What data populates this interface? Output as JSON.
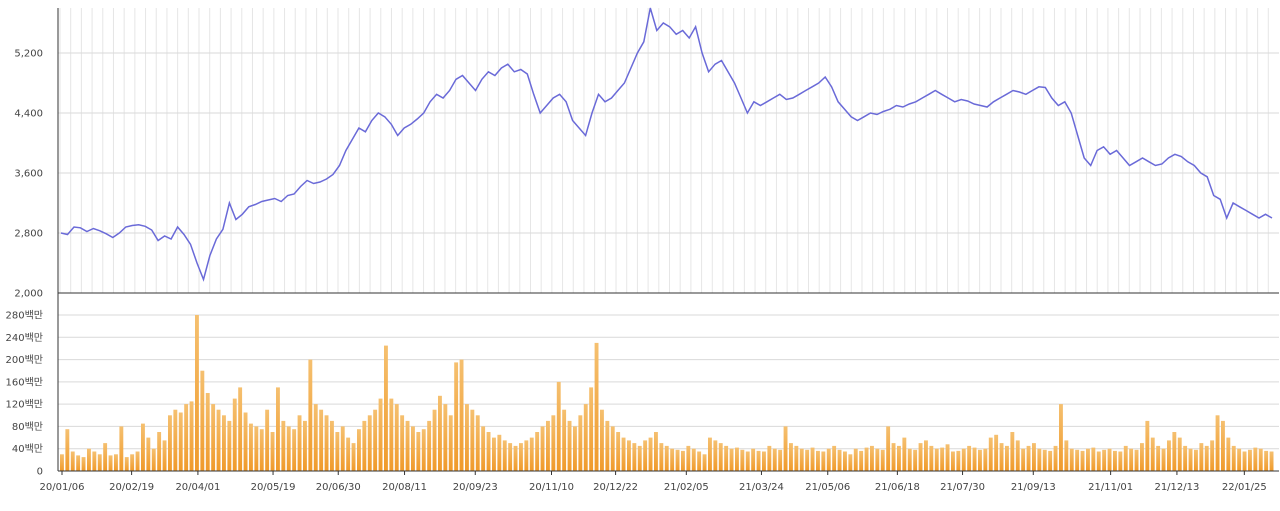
{
  "chart_data": [
    {
      "type": "line",
      "title": "",
      "xlabel": "",
      "ylabel": "",
      "ylim": [
        2000,
        5800
      ],
      "yticks": [
        "2,000",
        "2,800",
        "3,600",
        "4,400",
        "5,200"
      ],
      "ytick_values": [
        2000,
        2800,
        3600,
        4400,
        5200
      ],
      "grid": true,
      "color": "#6a6ad8",
      "x_start": "20/01/06",
      "x_end": "22/02/11",
      "series": [
        {
          "values": [
            2800,
            2780,
            2880,
            2870,
            2820,
            2860,
            2830,
            2790,
            2740,
            2800,
            2880,
            2900,
            2910,
            2890,
            2840,
            2700,
            2760,
            2720,
            2880,
            2780,
            2650,
            2400,
            2180,
            2500,
            2720,
            2850,
            3200,
            2980,
            3050,
            3150,
            3180,
            3220,
            3240,
            3260,
            3220,
            3300,
            3320,
            3420,
            3500,
            3460,
            3480,
            3520,
            3580,
            3700,
            3900,
            4050,
            4200,
            4150,
            4300,
            4400,
            4350,
            4250,
            4100,
            4200,
            4250,
            4320,
            4400,
            4550,
            4650,
            4600,
            4700,
            4850,
            4900,
            4800,
            4700,
            4850,
            4950,
            4900,
            5000,
            5050,
            4950,
            4980,
            4920,
            4650,
            4400,
            4500,
            4600,
            4650,
            4550,
            4300,
            4200,
            4100,
            4400,
            4650,
            4550,
            4600,
            4700,
            4800,
            5000,
            5200,
            5350,
            5800,
            5500,
            5600,
            5550,
            5450,
            5500,
            5400,
            5550,
            5200,
            4950,
            5050,
            5100,
            4950,
            4800,
            4600,
            4400,
            4550,
            4500,
            4550,
            4600,
            4650,
            4580,
            4600,
            4650,
            4700,
            4750,
            4800,
            4880,
            4750,
            4550,
            4450,
            4350,
            4300,
            4350,
            4400,
            4380,
            4420,
            4450,
            4500,
            4480,
            4520,
            4550,
            4600,
            4650,
            4700,
            4650,
            4600,
            4550,
            4580,
            4560,
            4520,
            4500,
            4480,
            4550,
            4600,
            4650,
            4700,
            4680,
            4650,
            4700,
            4750,
            4740,
            4600,
            4500,
            4550,
            4400,
            4100,
            3800,
            3700,
            3900,
            3950,
            3850,
            3900,
            3800,
            3700,
            3750,
            3800,
            3750,
            3700,
            3720,
            3800,
            3850,
            3820,
            3750,
            3700,
            3600,
            3550,
            3300,
            3250,
            3000,
            3200,
            3150,
            3100,
            3050,
            3000,
            3050,
            3000
          ]
        }
      ]
    },
    {
      "type": "bar",
      "title": "",
      "xlabel": "",
      "ylabel": "",
      "ylim": [
        0,
        280
      ],
      "yticks": [
        "0",
        "40백만",
        "80백만",
        "120백만",
        "160백만",
        "200백만",
        "240백만",
        "280백만"
      ],
      "ytick_values": [
        0,
        40,
        80,
        120,
        160,
        200,
        240,
        280
      ],
      "grid": true,
      "color": "#f09a2a",
      "color_light": "#f5c070",
      "series": [
        {
          "values": [
            30,
            75,
            35,
            28,
            25,
            40,
            35,
            30,
            50,
            28,
            30,
            80,
            25,
            30,
            35,
            85,
            60,
            40,
            70,
            55,
            100,
            110,
            105,
            120,
            125,
            280,
            180,
            140,
            120,
            110,
            100,
            90,
            130,
            150,
            105,
            85,
            80,
            75,
            110,
            70,
            150,
            90,
            80,
            75,
            100,
            90,
            200,
            120,
            110,
            100,
            90,
            70,
            80,
            60,
            50,
            75,
            90,
            100,
            110,
            130,
            225,
            130,
            120,
            100,
            90,
            80,
            70,
            75,
            90,
            110,
            135,
            120,
            100,
            195,
            200,
            120,
            110,
            100,
            80,
            70,
            60,
            65,
            55,
            50,
            45,
            50,
            55,
            60,
            70,
            80,
            90,
            100,
            160,
            110,
            90,
            80,
            100,
            120,
            150,
            230,
            110,
            90,
            80,
            70,
            60,
            55,
            50,
            45,
            55,
            60,
            70,
            50,
            45,
            40,
            38,
            36,
            45,
            40,
            35,
            30,
            60,
            55,
            50,
            45,
            40,
            42,
            38,
            35,
            40,
            36,
            35,
            45,
            40,
            38,
            80,
            50,
            45,
            40,
            38,
            42,
            36,
            35,
            40,
            45,
            38,
            35,
            30,
            40,
            36,
            42,
            45,
            40,
            38,
            80,
            50,
            45,
            60,
            40,
            38,
            50,
            55,
            45,
            40,
            42,
            48,
            35,
            36,
            40,
            45,
            42,
            38,
            40,
            60,
            65,
            50,
            45,
            70,
            55,
            40,
            45,
            50,
            40,
            38,
            36,
            45,
            120,
            55,
            40,
            38,
            36,
            40,
            42,
            35,
            38,
            40,
            36,
            35,
            45,
            40,
            38,
            50,
            90,
            60,
            45,
            40,
            55,
            70,
            60,
            45,
            40,
            38,
            50,
            45,
            55,
            100,
            90,
            60,
            45,
            40,
            35,
            38,
            42,
            40,
            36,
            35
          ]
        }
      ]
    }
  ],
  "x_tick_labels": [
    "20/01/06",
    "20/02/19",
    "20/04/01",
    "20/05/19",
    "20/06/30",
    "20/08/11",
    "20/09/23",
    "20/11/10",
    "20/12/22",
    "21/02/05",
    "21/03/24",
    "21/05/06",
    "21/06/18",
    "21/07/30",
    "21/09/13",
    "21/11/01",
    "21/12/13",
    "22/01/25"
  ],
  "x_tick_values": [
    0,
    6.3,
    12.3,
    19.1,
    25.0,
    31.0,
    37.4,
    44.3,
    50.1,
    56.5,
    63.3,
    69.3,
    75.6,
    81.5,
    87.9,
    94.9,
    100.9,
    107.0
  ],
  "x_range_weeks": [
    0,
    110.5
  ],
  "vertical_gridline_count": 114
}
